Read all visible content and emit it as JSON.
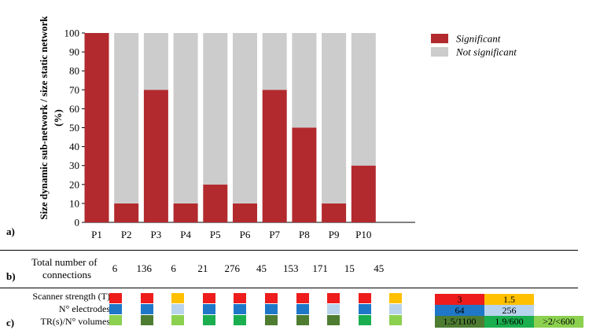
{
  "chart_data": {
    "type": "bar",
    "stacked": true,
    "ylabel": "Size dynamic sub-network / size static network (%)",
    "ylim": [
      0,
      100
    ],
    "yticks": [
      0,
      10,
      20,
      30,
      40,
      50,
      60,
      70,
      80,
      90,
      100
    ],
    "categories": [
      "P1",
      "P2",
      "P3",
      "P4",
      "P5",
      "P6",
      "P7",
      "P8",
      "P9",
      "P10"
    ],
    "series": [
      {
        "name": "Significant",
        "color": "#B22A2E",
        "values": [
          100,
          10,
          70,
          10,
          20,
          10,
          70,
          50,
          10,
          30
        ]
      },
      {
        "name": "Not significant",
        "color": "#CCCCCC",
        "values": [
          0,
          90,
          30,
          90,
          80,
          90,
          30,
          50,
          90,
          70
        ]
      }
    ],
    "legend_position": "top-right",
    "grid": false
  },
  "panels": {
    "a": "a)",
    "b": "b)",
    "c": "c)"
  },
  "connections": {
    "label_line1": "Total number of",
    "label_line2": "connections",
    "values": [
      "6",
      "136",
      "6",
      "21",
      "276",
      "45",
      "153",
      "171",
      "15",
      "45"
    ]
  },
  "scanner": {
    "row_labels": [
      "Scanner strength (T)",
      "N° electrodes",
      "TR(s)/N° volumes"
    ],
    "strength_colors": {
      "3": "#EE1C1C",
      "1.5": "#FFC000"
    },
    "electrode_colors": {
      "64": "#1F77C8",
      "256": "#B8D4EC"
    },
    "tr_colors": {
      "1.5/1100": "#4E7D32",
      "1.9/600": "#1AAE4E",
      ">2/<600": "#8CD050"
    },
    "per_participant": [
      {
        "strength": "3",
        "electrodes": "64",
        "tr": ">2/<600"
      },
      {
        "strength": "3",
        "electrodes": "64",
        "tr": "1.5/1100"
      },
      {
        "strength": "1.5",
        "electrodes": "256",
        "tr": ">2/<600"
      },
      {
        "strength": "3",
        "electrodes": "64",
        "tr": "1.9/600"
      },
      {
        "strength": "3",
        "electrodes": "64",
        "tr": "1.9/600"
      },
      {
        "strength": "3",
        "electrodes": "64",
        "tr": "1.5/1100"
      },
      {
        "strength": "3",
        "electrodes": "64",
        "tr": "1.5/1100"
      },
      {
        "strength": "3",
        "electrodes": "256",
        "tr": "1.5/1100"
      },
      {
        "strength": "3",
        "electrodes": "64",
        "tr": "1.9/600"
      },
      {
        "strength": "1.5",
        "electrodes": "256",
        "tr": ">2/<600"
      }
    ],
    "key": {
      "strength": [
        "3",
        "1.5"
      ],
      "electrodes": [
        "64",
        "256"
      ],
      "tr": [
        "1.5/1100",
        "1.9/600",
        ">2/<600"
      ]
    }
  }
}
